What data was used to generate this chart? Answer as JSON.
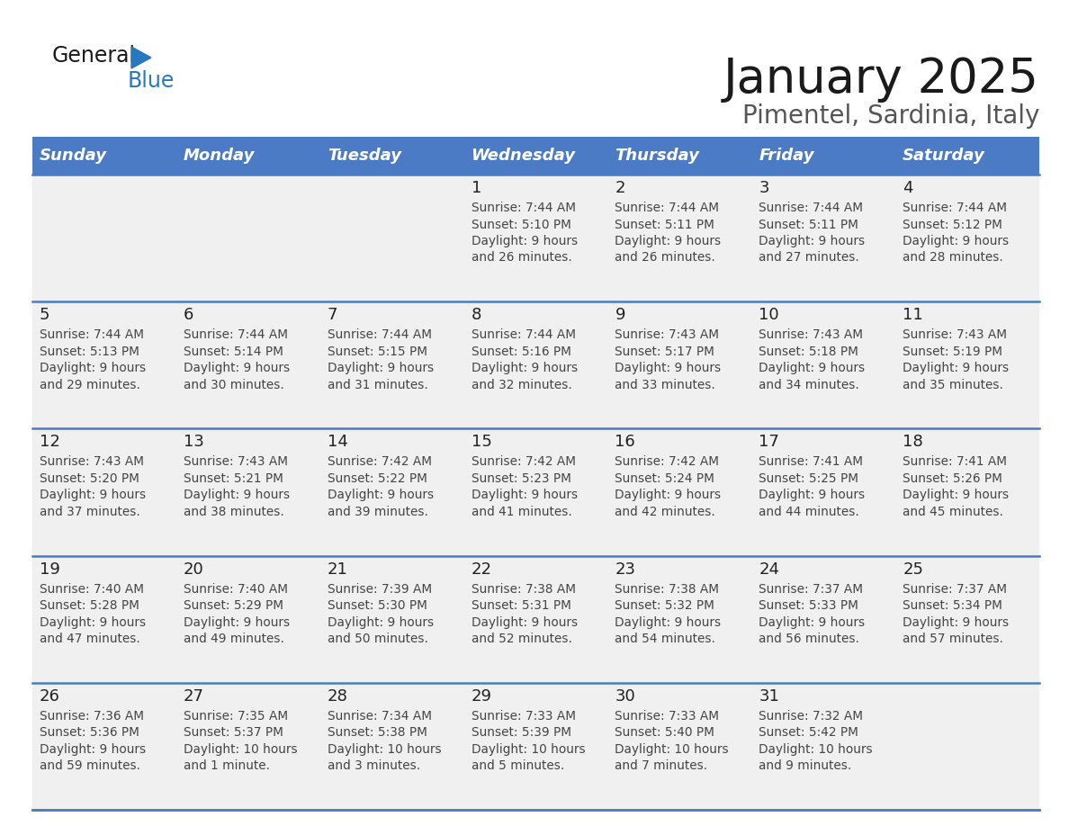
{
  "title": "January 2025",
  "subtitle": "Pimentel, Sardinia, Italy",
  "header_color": "#4A7BC4",
  "header_text_color": "#FFFFFF",
  "day_names": [
    "Sunday",
    "Monday",
    "Tuesday",
    "Wednesday",
    "Thursday",
    "Friday",
    "Saturday"
  ],
  "grid_line_color": "#4A7BC4",
  "cell_bg_color": "#F0F0F0",
  "day_num_color": "#333333",
  "info_text_color": "#444444",
  "weeks": [
    [
      {
        "day": "",
        "sunrise": "",
        "sunset": "",
        "daylight": ""
      },
      {
        "day": "",
        "sunrise": "",
        "sunset": "",
        "daylight": ""
      },
      {
        "day": "",
        "sunrise": "",
        "sunset": "",
        "daylight": ""
      },
      {
        "day": "1",
        "sunrise": "7:44 AM",
        "sunset": "5:10 PM",
        "daylight_l1": "9 hours",
        "daylight_l2": "and 26 minutes."
      },
      {
        "day": "2",
        "sunrise": "7:44 AM",
        "sunset": "5:11 PM",
        "daylight_l1": "9 hours",
        "daylight_l2": "and 26 minutes."
      },
      {
        "day": "3",
        "sunrise": "7:44 AM",
        "sunset": "5:11 PM",
        "daylight_l1": "9 hours",
        "daylight_l2": "and 27 minutes."
      },
      {
        "day": "4",
        "sunrise": "7:44 AM",
        "sunset": "5:12 PM",
        "daylight_l1": "9 hours",
        "daylight_l2": "and 28 minutes."
      }
    ],
    [
      {
        "day": "5",
        "sunrise": "7:44 AM",
        "sunset": "5:13 PM",
        "daylight_l1": "9 hours",
        "daylight_l2": "and 29 minutes."
      },
      {
        "day": "6",
        "sunrise": "7:44 AM",
        "sunset": "5:14 PM",
        "daylight_l1": "9 hours",
        "daylight_l2": "and 30 minutes."
      },
      {
        "day": "7",
        "sunrise": "7:44 AM",
        "sunset": "5:15 PM",
        "daylight_l1": "9 hours",
        "daylight_l2": "and 31 minutes."
      },
      {
        "day": "8",
        "sunrise": "7:44 AM",
        "sunset": "5:16 PM",
        "daylight_l1": "9 hours",
        "daylight_l2": "and 32 minutes."
      },
      {
        "day": "9",
        "sunrise": "7:43 AM",
        "sunset": "5:17 PM",
        "daylight_l1": "9 hours",
        "daylight_l2": "and 33 minutes."
      },
      {
        "day": "10",
        "sunrise": "7:43 AM",
        "sunset": "5:18 PM",
        "daylight_l1": "9 hours",
        "daylight_l2": "and 34 minutes."
      },
      {
        "day": "11",
        "sunrise": "7:43 AM",
        "sunset": "5:19 PM",
        "daylight_l1": "9 hours",
        "daylight_l2": "and 35 minutes."
      }
    ],
    [
      {
        "day": "12",
        "sunrise": "7:43 AM",
        "sunset": "5:20 PM",
        "daylight_l1": "9 hours",
        "daylight_l2": "and 37 minutes."
      },
      {
        "day": "13",
        "sunrise": "7:43 AM",
        "sunset": "5:21 PM",
        "daylight_l1": "9 hours",
        "daylight_l2": "and 38 minutes."
      },
      {
        "day": "14",
        "sunrise": "7:42 AM",
        "sunset": "5:22 PM",
        "daylight_l1": "9 hours",
        "daylight_l2": "and 39 minutes."
      },
      {
        "day": "15",
        "sunrise": "7:42 AM",
        "sunset": "5:23 PM",
        "daylight_l1": "9 hours",
        "daylight_l2": "and 41 minutes."
      },
      {
        "day": "16",
        "sunrise": "7:42 AM",
        "sunset": "5:24 PM",
        "daylight_l1": "9 hours",
        "daylight_l2": "and 42 minutes."
      },
      {
        "day": "17",
        "sunrise": "7:41 AM",
        "sunset": "5:25 PM",
        "daylight_l1": "9 hours",
        "daylight_l2": "and 44 minutes."
      },
      {
        "day": "18",
        "sunrise": "7:41 AM",
        "sunset": "5:26 PM",
        "daylight_l1": "9 hours",
        "daylight_l2": "and 45 minutes."
      }
    ],
    [
      {
        "day": "19",
        "sunrise": "7:40 AM",
        "sunset": "5:28 PM",
        "daylight_l1": "9 hours",
        "daylight_l2": "and 47 minutes."
      },
      {
        "day": "20",
        "sunrise": "7:40 AM",
        "sunset": "5:29 PM",
        "daylight_l1": "9 hours",
        "daylight_l2": "and 49 minutes."
      },
      {
        "day": "21",
        "sunrise": "7:39 AM",
        "sunset": "5:30 PM",
        "daylight_l1": "9 hours",
        "daylight_l2": "and 50 minutes."
      },
      {
        "day": "22",
        "sunrise": "7:38 AM",
        "sunset": "5:31 PM",
        "daylight_l1": "9 hours",
        "daylight_l2": "and 52 minutes."
      },
      {
        "day": "23",
        "sunrise": "7:38 AM",
        "sunset": "5:32 PM",
        "daylight_l1": "9 hours",
        "daylight_l2": "and 54 minutes."
      },
      {
        "day": "24",
        "sunrise": "7:37 AM",
        "sunset": "5:33 PM",
        "daylight_l1": "9 hours",
        "daylight_l2": "and 56 minutes."
      },
      {
        "day": "25",
        "sunrise": "7:37 AM",
        "sunset": "5:34 PM",
        "daylight_l1": "9 hours",
        "daylight_l2": "and 57 minutes."
      }
    ],
    [
      {
        "day": "26",
        "sunrise": "7:36 AM",
        "sunset": "5:36 PM",
        "daylight_l1": "9 hours",
        "daylight_l2": "and 59 minutes."
      },
      {
        "day": "27",
        "sunrise": "7:35 AM",
        "sunset": "5:37 PM",
        "daylight_l1": "10 hours",
        "daylight_l2": "and 1 minute."
      },
      {
        "day": "28",
        "sunrise": "7:34 AM",
        "sunset": "5:38 PM",
        "daylight_l1": "10 hours",
        "daylight_l2": "and 3 minutes."
      },
      {
        "day": "29",
        "sunrise": "7:33 AM",
        "sunset": "5:39 PM",
        "daylight_l1": "10 hours",
        "daylight_l2": "and 5 minutes."
      },
      {
        "day": "30",
        "sunrise": "7:33 AM",
        "sunset": "5:40 PM",
        "daylight_l1": "10 hours",
        "daylight_l2": "and 7 minutes."
      },
      {
        "day": "31",
        "sunrise": "7:32 AM",
        "sunset": "5:42 PM",
        "daylight_l1": "10 hours",
        "daylight_l2": "and 9 minutes."
      },
      {
        "day": "",
        "sunrise": "",
        "sunset": "",
        "daylight_l1": "",
        "daylight_l2": ""
      }
    ]
  ]
}
